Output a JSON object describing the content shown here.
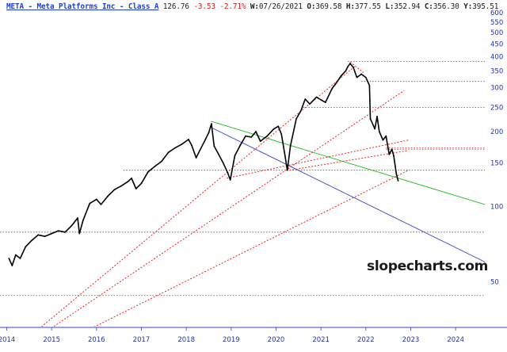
{
  "header": {
    "symbol_name": "META - Meta Platforms Inc - Class A",
    "last": "126.76",
    "change": "-3.53",
    "change_pct": "-2.71%",
    "week_label": "W:",
    "week_date": "07/26/2021",
    "open_label": "O:",
    "open": "369.58",
    "high_label": "H:",
    "high": "377.55",
    "low_label": "L:",
    "low": "352.94",
    "close_label": "C:",
    "close": "356.30",
    "y_label": "Y:",
    "y_value": "395.51"
  },
  "watermark": "slopecharts.com",
  "colors": {
    "price": "#000000",
    "axis_text": "#2233aa",
    "green_line": "#22bb22",
    "blue_line": "#3344cc",
    "red_dotted": "#ee2222",
    "gray_dotted": "#555555",
    "axis_line": "#3344cc"
  },
  "chart_data": {
    "type": "line",
    "y_scale": "log",
    "ylim": [
      33,
      600
    ],
    "xlim": [
      2013.85,
      2024.65
    ],
    "y_ticks": [
      50,
      100,
      150,
      200,
      250,
      300,
      350,
      400,
      450,
      500,
      550,
      600
    ],
    "x_ticks": [
      "2014",
      "2015",
      "2016",
      "2017",
      "2018",
      "2019",
      "2020",
      "2021",
      "2022",
      "2023",
      "2024"
    ],
    "grid": false,
    "series": [
      {
        "points": [
          [
            2014.05,
            62
          ],
          [
            2014.12,
            58
          ],
          [
            2014.2,
            64
          ],
          [
            2014.3,
            62
          ],
          [
            2014.42,
            69
          ],
          [
            2014.55,
            73
          ],
          [
            2014.7,
            77
          ],
          [
            2014.85,
            76
          ],
          [
            2015.0,
            78
          ],
          [
            2015.15,
            80
          ],
          [
            2015.3,
            79
          ],
          [
            2015.45,
            84
          ],
          [
            2015.58,
            90
          ],
          [
            2015.62,
            78
          ],
          [
            2015.7,
            88
          ],
          [
            2015.85,
            103
          ],
          [
            2016.0,
            107
          ],
          [
            2016.1,
            102
          ],
          [
            2016.25,
            110
          ],
          [
            2016.4,
            117
          ],
          [
            2016.55,
            121
          ],
          [
            2016.7,
            126
          ],
          [
            2016.78,
            130
          ],
          [
            2016.88,
            118
          ],
          [
            2017.0,
            124
          ],
          [
            2017.15,
            138
          ],
          [
            2017.3,
            145
          ],
          [
            2017.45,
            152
          ],
          [
            2017.6,
            165
          ],
          [
            2017.75,
            172
          ],
          [
            2017.9,
            178
          ],
          [
            2018.05,
            186
          ],
          [
            2018.12,
            176
          ],
          [
            2018.22,
            157
          ],
          [
            2018.3,
            168
          ],
          [
            2018.4,
            182
          ],
          [
            2018.5,
            198
          ],
          [
            2018.56,
            215
          ],
          [
            2018.62,
            175
          ],
          [
            2018.72,
            162
          ],
          [
            2018.82,
            150
          ],
          [
            2018.92,
            137
          ],
          [
            2018.98,
            128
          ],
          [
            2019.08,
            160
          ],
          [
            2019.2,
            176
          ],
          [
            2019.32,
            192
          ],
          [
            2019.45,
            190
          ],
          [
            2019.55,
            200
          ],
          [
            2019.65,
            183
          ],
          [
            2019.8,
            192
          ],
          [
            2019.95,
            205
          ],
          [
            2020.05,
            210
          ],
          [
            2020.12,
            195
          ],
          [
            2020.2,
            160
          ],
          [
            2020.25,
            140
          ],
          [
            2020.32,
            175
          ],
          [
            2020.45,
            225
          ],
          [
            2020.55,
            242
          ],
          [
            2020.65,
            270
          ],
          [
            2020.75,
            258
          ],
          [
            2020.9,
            275
          ],
          [
            2021.0,
            268
          ],
          [
            2021.1,
            262
          ],
          [
            2021.25,
            298
          ],
          [
            2021.35,
            315
          ],
          [
            2021.45,
            335
          ],
          [
            2021.55,
            350
          ],
          [
            2021.6,
            365
          ],
          [
            2021.65,
            375
          ],
          [
            2021.72,
            362
          ],
          [
            2021.8,
            330
          ],
          [
            2021.9,
            340
          ],
          [
            2022.0,
            330
          ],
          [
            2022.08,
            306
          ],
          [
            2022.1,
            225
          ],
          [
            2022.2,
            205
          ],
          [
            2022.25,
            230
          ],
          [
            2022.3,
            200
          ],
          [
            2022.38,
            185
          ],
          [
            2022.45,
            192
          ],
          [
            2022.52,
            162
          ],
          [
            2022.58,
            170
          ],
          [
            2022.62,
            160
          ],
          [
            2022.68,
            135
          ],
          [
            2022.72,
            127
          ]
        ]
      }
    ],
    "trendlines": [
      {
        "color": "green",
        "style": "solid",
        "from": [
          2018.55,
          220
        ],
        "to": [
          2024.65,
          102
        ]
      },
      {
        "color": "blue",
        "style": "solid",
        "from": [
          2018.55,
          208
        ],
        "to": [
          2024.65,
          60
        ]
      },
      {
        "color": "red",
        "style": "dotted",
        "from": [
          2014.5,
          30
        ],
        "to": [
          2021.75,
          365
        ]
      },
      {
        "color": "red",
        "style": "dotted",
        "from": [
          2014.7,
          30
        ],
        "to": [
          2022.85,
          292
        ]
      },
      {
        "color": "red",
        "style": "dotted",
        "from": [
          2015.5,
          30
        ],
        "to": [
          2022.95,
          140
        ]
      },
      {
        "color": "red",
        "style": "dotted",
        "from": [
          2018.9,
          130
        ],
        "to": [
          2022.95,
          185
        ]
      },
      {
        "color": "red",
        "style": "dotted",
        "from": [
          2020.3,
          140
        ],
        "to": [
          2022.95,
          168
        ]
      },
      {
        "color": "red",
        "style": "dotted",
        "from": [
          2021.65,
          380
        ],
        "to": [
          2021.95,
          345
        ]
      }
    ],
    "horizontal_levels": [
      {
        "value": 382,
        "from_x": 2021.6
      },
      {
        "value": 318,
        "from_x": 2021.9
      },
      {
        "value": 250,
        "from_x": 2020.6
      },
      {
        "value": 172,
        "from_x": 2022.45,
        "color": "red"
      },
      {
        "value": 170,
        "from_x": 2022.45
      },
      {
        "value": 140,
        "from_x": 2016.6
      },
      {
        "value": 79,
        "from_x": 2013.85
      },
      {
        "value": 44,
        "from_x": 2013.85
      }
    ]
  }
}
